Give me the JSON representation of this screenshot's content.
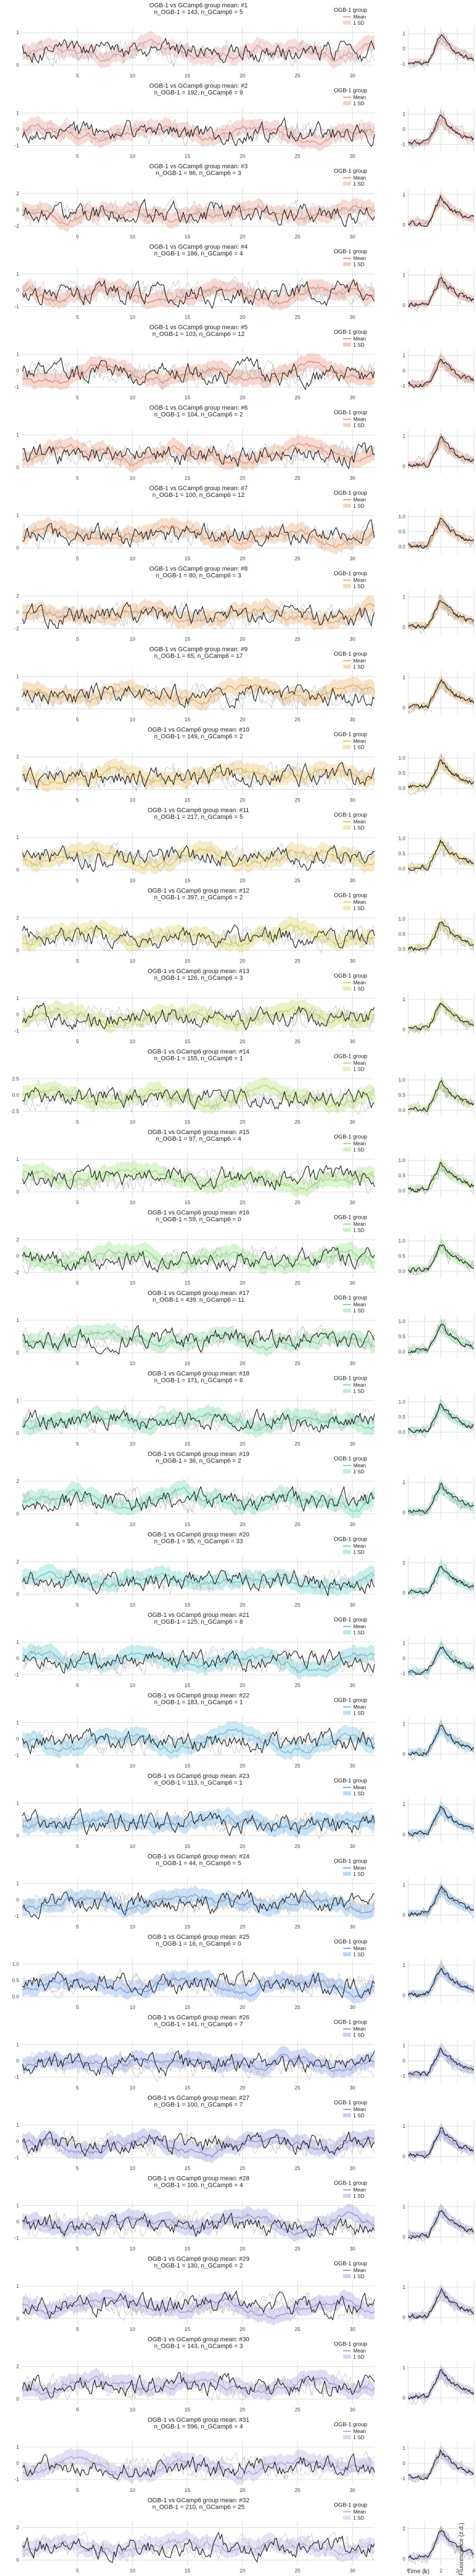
{
  "figure": {
    "ylabel": "Fluorescence (z.d.)",
    "xlabel": "Time (s)",
    "legend_title": "OGB-1 group",
    "legend_mean": "Mean",
    "legend_sd": "1 SD"
  },
  "chart_data": {
    "type": "line",
    "panel_count": 32,
    "trace_xlim": [
      0,
      32
    ],
    "trace_xticks": [
      5,
      10,
      15,
      20,
      25,
      30
    ],
    "avg_xlim": [
      0,
      4
    ],
    "avg_xticks": [
      0,
      1,
      2,
      3,
      4
    ],
    "panels": [
      {
        "title": "OGB-1 vs GCamp6 group mean: #1",
        "subtitle": "n_OGB-1 = 143, n_GCamp6 = 5",
        "color": "#e8a0a0",
        "yticks": [
          "1",
          "0"
        ],
        "avg_yticks": [
          "1",
          "0",
          "-1"
        ]
      },
      {
        "title": "OGB-1 vs GCamp6 group mean: #2",
        "subtitle": "n_OGB-1 = 192, n_GCamp6 = 9",
        "color": "#e89890",
        "yticks": [
          "1",
          "0",
          "-1"
        ],
        "avg_yticks": [
          "1",
          "0",
          "-1"
        ]
      },
      {
        "title": "OGB-1 vs GCamp6 group mean: #3",
        "subtitle": "n_OGB-1 = 96, n_GCamp6 = 3",
        "color": "#e89888",
        "yticks": [
          "2",
          "0",
          "-2"
        ],
        "avg_yticks": [
          "1",
          "0"
        ]
      },
      {
        "title": "OGB-1 vs GCamp6 group mean: #4",
        "subtitle": "n_OGB-1 = 186, n_GCamp6 = 4",
        "color": "#e89080",
        "yticks": [
          "1",
          "0",
          "-1"
        ],
        "avg_yticks": [
          "1",
          "0"
        ]
      },
      {
        "title": "OGB-1 vs GCamp6 group mean: #5",
        "subtitle": "n_OGB-1 = 103, n_GCamp6 = 12",
        "color": "#e89078",
        "yticks": [
          "1",
          "0",
          "-1"
        ],
        "avg_yticks": [
          "1",
          "0",
          "-1"
        ]
      },
      {
        "title": "OGB-1 vs GCamp6 group mean: #6",
        "subtitle": "n_OGB-1 = 104, n_GCamp6 = 2",
        "color": "#e89878",
        "yticks": [
          "1",
          "0"
        ],
        "avg_yticks": [
          "1",
          "0"
        ]
      },
      {
        "title": "OGB-1 vs GCamp6 group mean: #7",
        "subtitle": "n_OGB-1 = 100, n_GCamp6 = 12",
        "color": "#e8a070",
        "yticks": [
          "1",
          "0"
        ],
        "avg_yticks": [
          "1.0",
          "0.5",
          "0.0"
        ]
      },
      {
        "title": "OGB-1 vs GCamp6 group mean: #8",
        "subtitle": "n_OGB-1 = 80, n_GCamp6 = 3",
        "color": "#e8a868",
        "yticks": [
          "2",
          "0",
          "-2"
        ],
        "avg_yticks": [
          "1",
          "0"
        ]
      },
      {
        "title": "OGB-1 vs GCamp6 group mean: #9",
        "subtitle": "n_OGB-1 = 65, n_GCamp6 = 17",
        "color": "#e8b060",
        "yticks": [
          "1",
          "0"
        ],
        "avg_yticks": [
          "1",
          "0"
        ]
      },
      {
        "title": "OGB-1 vs GCamp6 group mean: #10",
        "subtitle": "n_OGB-1 = 149, n_GCamp6 = 2",
        "color": "#e8c060",
        "yticks": [
          "2",
          "0"
        ],
        "avg_yticks": [
          "1.0",
          "0.5",
          "0.0"
        ]
      },
      {
        "title": "OGB-1 vs GCamp6 group mean: #11",
        "subtitle": "n_OGB-1 = 217, n_GCamp6 = 5",
        "color": "#e0c860",
        "yticks": [
          "1",
          "0"
        ],
        "avg_yticks": [
          "1.0",
          "0.5",
          "0.0"
        ]
      },
      {
        "title": "OGB-1 vs GCamp6 group mean: #12",
        "subtitle": "n_OGB-1 = 397, n_GCamp6 = 2",
        "color": "#d8d060",
        "yticks": [
          "2",
          "0"
        ],
        "avg_yticks": [
          "1.0",
          "0.5",
          "0.0"
        ]
      },
      {
        "title": "OGB-1 vs GCamp6 group mean: #13",
        "subtitle": "n_OGB-1 = 126, n_GCamp6 = 3",
        "color": "#c8d868",
        "yticks": [
          "1",
          "0",
          "-1"
        ],
        "avg_yticks": [
          "1",
          "0"
        ]
      },
      {
        "title": "OGB-1 vs GCamp6 group mean: #14",
        "subtitle": "n_OGB-1 = 155, n_GCamp6 = 1",
        "color": "#b8e070",
        "yticks": [
          "2.5",
          "0.0",
          "-2.5"
        ],
        "avg_yticks": [
          "1.0",
          "0.5",
          "0.0"
        ]
      },
      {
        "title": "OGB-1 vs GCamp6 group mean: #15",
        "subtitle": "n_OGB-1 = 97, n_GCamp6 = 4",
        "color": "#a0e078",
        "yticks": [
          "1",
          "0"
        ],
        "avg_yticks": [
          "1.0",
          "0.5",
          "0.0"
        ]
      },
      {
        "title": "OGB-1 vs GCamp6 group mean: #16",
        "subtitle": "n_OGB-1 = 59, n_GCamp6 = 0",
        "color": "#90e088",
        "yticks": [
          "2",
          "0",
          "-2"
        ],
        "avg_yticks": [
          "1.0",
          "0.5",
          "0.0"
        ]
      },
      {
        "title": "OGB-1 vs GCamp6 group mean: #17",
        "subtitle": "n_OGB-1 = 439, n_GCamp6 = 11",
        "color": "#80d898",
        "yticks": [
          "1",
          "0"
        ],
        "avg_yticks": [
          "1.0",
          "0.5",
          "0.0"
        ]
      },
      {
        "title": "OGB-1 vs GCamp6 group mean: #18",
        "subtitle": "n_OGB-1 = 171, n_GCamp6 = 6",
        "color": "#70d8a8",
        "yticks": [
          "1",
          "0"
        ],
        "avg_yticks": [
          "1.0",
          "0.5",
          "0.0"
        ]
      },
      {
        "title": "OGB-1 vs GCamp6 group mean: #19",
        "subtitle": "n_OGB-1 = 36, n_GCamp6 = 2",
        "color": "#70d8b8",
        "yticks": [
          "2",
          "0"
        ],
        "avg_yticks": [
          "1",
          "0"
        ]
      },
      {
        "title": "OGB-1 vs GCamp6 group mean: #20",
        "subtitle": "n_OGB-1 = 95, n_GCamp6 = 33",
        "color": "#68d0c8",
        "yticks": [
          "2",
          "0"
        ],
        "avg_yticks": [
          "2",
          "0"
        ]
      },
      {
        "title": "OGB-1 vs GCamp6 group mean: #21",
        "subtitle": "n_OGB-1 = 125, n_GCamp6 = 8",
        "color": "#68c8d0",
        "yticks": [
          "1",
          "0",
          "-1"
        ],
        "avg_yticks": [
          "1",
          "0",
          "-1"
        ]
      },
      {
        "title": "OGB-1 vs GCamp6 group mean: #22",
        "subtitle": "n_OGB-1 = 183, n_GCamp6 = 1",
        "color": "#70c0e0",
        "yticks": [
          "1",
          "0",
          "-1"
        ],
        "avg_yticks": [
          "1",
          "0"
        ]
      },
      {
        "title": "OGB-1 vs GCamp6 group mean: #23",
        "subtitle": "n_OGB-1 = 113, n_GCamp6 = 1",
        "color": "#68b0e8",
        "yticks": [
          "1",
          "0"
        ],
        "avg_yticks": [
          "1",
          "0"
        ]
      },
      {
        "title": "OGB-1 vs GCamp6 group mean: #24",
        "subtitle": "n_OGB-1 = 44, n_GCamp6 = 5",
        "color": "#70a8e8",
        "yticks": [
          "1",
          "0",
          "-1"
        ],
        "avg_yticks": [
          "1",
          "0"
        ]
      },
      {
        "title": "OGB-1 vs GCamp6 group mean: #25",
        "subtitle": "n_OGB-1 = 16, n_GCamp6 = 0",
        "color": "#78a0f0",
        "yticks": [
          "1.0",
          "0.5",
          "0.0"
        ],
        "avg_yticks": [
          "1",
          "0"
        ]
      },
      {
        "title": "OGB-1 vs GCamp6 group mean: #26",
        "subtitle": "n_OGB-1 = 141, n_GCamp6 = 7",
        "color": "#8898e8",
        "yticks": [
          "1",
          "0",
          "-1"
        ],
        "avg_yticks": [
          "1",
          "0",
          "-1"
        ]
      },
      {
        "title": "OGB-1 vs GCamp6 group mean: #27",
        "subtitle": "n_OGB-1 = 100, n_GCamp6 = 7",
        "color": "#9090e0",
        "yticks": [
          "1",
          "0",
          "-1"
        ],
        "avg_yticks": [
          "1",
          "0"
        ]
      },
      {
        "title": "OGB-1 vs GCamp6 group mean: #28",
        "subtitle": "n_OGB-1 = 100, n_GCamp6 = 4",
        "color": "#9898e0",
        "yticks": [
          "1",
          "0",
          "-1"
        ],
        "avg_yticks": [
          "1",
          "0"
        ]
      },
      {
        "title": "OGB-1 vs GCamp6 group mean: #29",
        "subtitle": "n_OGB-1 = 130, n_GCamp6 = 2",
        "color": "#a098e0",
        "yticks": [
          "1",
          "0"
        ],
        "avg_yticks": [
          "1",
          "0"
        ]
      },
      {
        "title": "OGB-1 vs GCamp6 group mean: #30",
        "subtitle": "n_OGB-1 = 143, n_GCamp6 = 3",
        "color": "#a8a0e0",
        "yticks": [
          "2",
          "0"
        ],
        "avg_yticks": [
          "1",
          "0"
        ]
      },
      {
        "title": "OGB-1 vs GCamp6 group mean: #31",
        "subtitle": "n_OGB-1 = 596, n_GCamp6 = 4",
        "color": "#b0a8e0",
        "yticks": [
          "1",
          "0",
          "-1"
        ],
        "avg_yticks": [
          "1",
          "0",
          "-1"
        ]
      },
      {
        "title": "OGB-1 vs GCamp6 group mean: #32",
        "subtitle": "n_OGB-1 = 210, n_GCamp6 = 25",
        "color": "#b8b0e8",
        "yticks": [
          "2",
          "0"
        ],
        "avg_yticks": [
          "2",
          "0"
        ]
      }
    ]
  }
}
